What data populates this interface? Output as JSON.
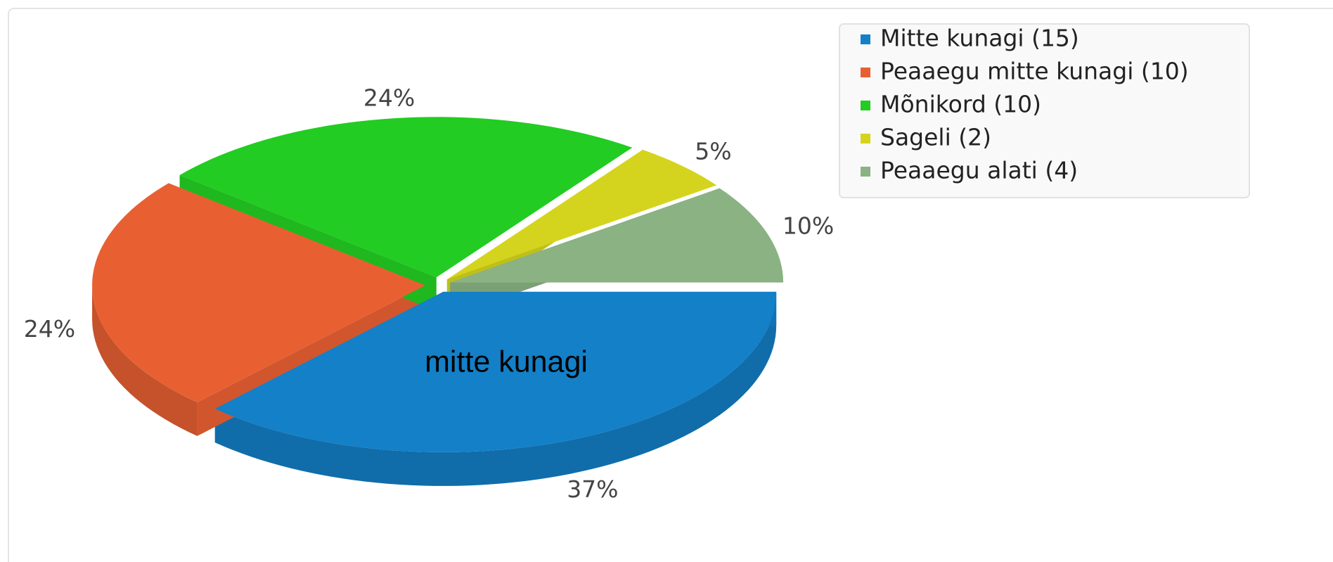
{
  "chart_data": {
    "type": "pie3d",
    "categories": [
      "Mitte kunagi (15)",
      "Peaaegu mitte kunagi (10)",
      "Mõnikord (10)",
      "Sageli (2)",
      "Peaaegu alati (4)"
    ],
    "values": [
      37,
      24,
      24,
      5,
      10
    ],
    "value_labels": [
      "37%",
      "24%",
      "24%",
      "5%",
      "10%"
    ],
    "colors": [
      "#1380c8",
      "#e86032",
      "#22cc22",
      "#d4d41e",
      "#8ab283"
    ],
    "annotation": "mitte kunagi",
    "legend": "top-right"
  }
}
